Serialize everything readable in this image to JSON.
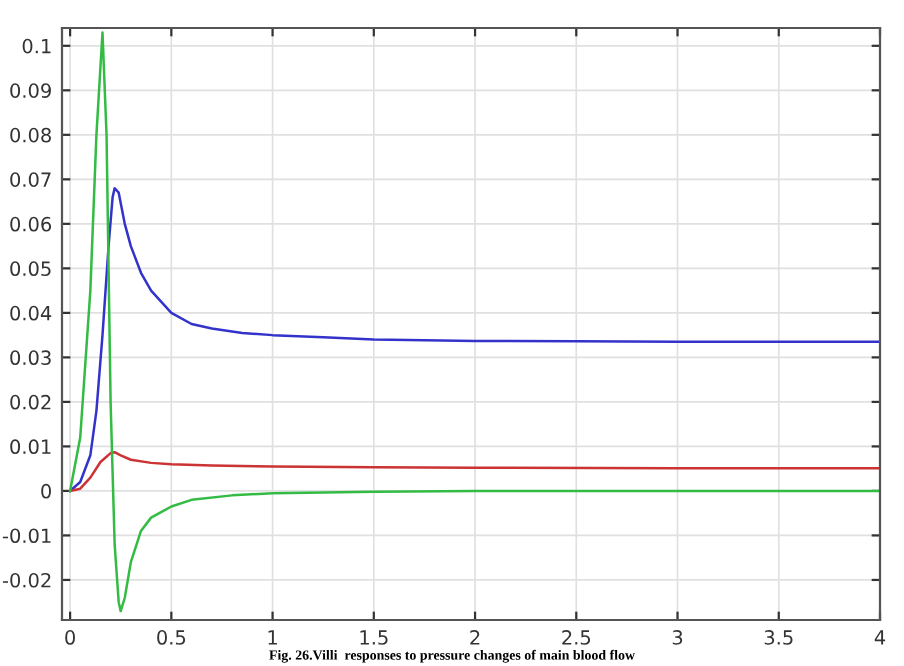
{
  "chart_data": {
    "type": "line",
    "xlim": [
      -0.04,
      4.0
    ],
    "ylim": [
      -0.029,
      0.104
    ],
    "xticks": [
      0,
      0.5,
      1,
      1.5,
      2,
      2.5,
      3,
      3.5,
      4
    ],
    "yticks": [
      -0.02,
      -0.01,
      0,
      0.01,
      0.02,
      0.03,
      0.04,
      0.05,
      0.06,
      0.07,
      0.08,
      0.09,
      0.1
    ],
    "grid": true,
    "marker": "none",
    "line_style": "solid",
    "annotations": [
      "Fig. 26.Villi  responses to pressure changes of main blood flow"
    ],
    "series": [
      {
        "color": "#3333cc",
        "x": [
          0,
          0.05,
          0.1,
          0.13,
          0.16,
          0.19,
          0.21,
          0.22,
          0.24,
          0.27,
          0.3,
          0.35,
          0.4,
          0.5,
          0.6,
          0.7,
          0.85,
          1,
          1.25,
          1.5,
          2,
          2.5,
          3,
          3.5,
          4
        ],
        "values": [
          0,
          0.002,
          0.008,
          0.018,
          0.035,
          0.055,
          0.066,
          0.068,
          0.067,
          0.06,
          0.055,
          0.049,
          0.045,
          0.04,
          0.0375,
          0.0365,
          0.0355,
          0.035,
          0.0345,
          0.034,
          0.0337,
          0.0336,
          0.0335,
          0.0335,
          0.0335
        ]
      },
      {
        "color": "#cc3333",
        "x": [
          0,
          0.05,
          0.1,
          0.15,
          0.2,
          0.22,
          0.25,
          0.3,
          0.4,
          0.5,
          0.7,
          1,
          1.5,
          2,
          3,
          4
        ],
        "values": [
          0,
          0.0005,
          0.003,
          0.0065,
          0.0085,
          0.0087,
          0.008,
          0.007,
          0.0063,
          0.006,
          0.0057,
          0.0055,
          0.0053,
          0.0052,
          0.0051,
          0.0051
        ]
      },
      {
        "color": "#33bb44",
        "x": [
          0,
          0.05,
          0.1,
          0.13,
          0.16,
          0.18,
          0.2,
          0.22,
          0.24,
          0.25,
          0.27,
          0.3,
          0.35,
          0.4,
          0.5,
          0.6,
          0.8,
          1,
          1.5,
          2,
          3,
          4
        ],
        "values": [
          0,
          0.012,
          0.045,
          0.08,
          0.103,
          0.08,
          0.02,
          -0.012,
          -0.025,
          -0.027,
          -0.024,
          -0.016,
          -0.009,
          -0.006,
          -0.0035,
          -0.002,
          -0.001,
          -0.0005,
          -0.0002,
          0,
          0,
          0
        ]
      }
    ]
  }
}
